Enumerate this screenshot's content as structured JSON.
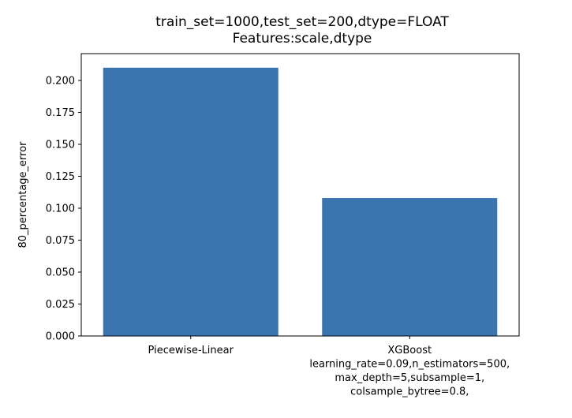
{
  "chart_data": {
    "type": "bar",
    "title": "train_set=1000,test_set=200,dtype=FLOAT",
    "subtitle": "Features:scale,dtype",
    "xlabel": "",
    "ylabel": "80_percentage_error",
    "categories": [
      "Piecewise-Linear",
      "XGBoost\nlearning_rate=0.09,n_estimators=500,\nmax_depth=5,subsample=1,\ncolsample_bytree=0.8,"
    ],
    "values": [
      0.21,
      0.108
    ],
    "ylim": [
      0,
      0.221
    ],
    "yticks": [
      0.0,
      0.025,
      0.05,
      0.075,
      0.1,
      0.125,
      0.15,
      0.175,
      0.2
    ],
    "ytick_labels": [
      "0.000",
      "0.025",
      "0.050",
      "0.075",
      "0.100",
      "0.125",
      "0.150",
      "0.175",
      "0.200"
    ],
    "bar_color": "#3a75af",
    "grid": false,
    "legend": "none"
  }
}
